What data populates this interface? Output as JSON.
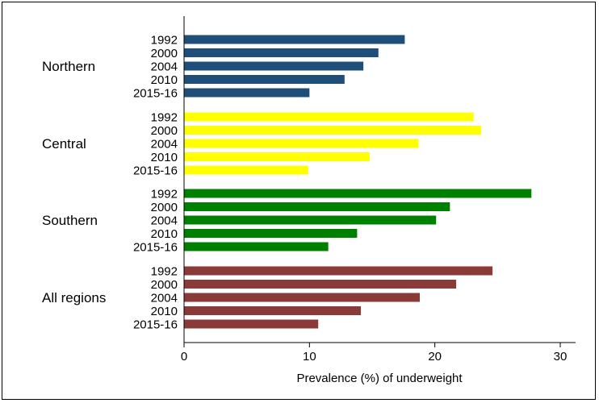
{
  "chart_data": {
    "type": "bar",
    "orientation": "horizontal",
    "xlabel": "Prevalence (%) of underweight",
    "xlim": [
      0,
      31
    ],
    "xticks": [
      0,
      10,
      20,
      30
    ],
    "grid": false,
    "groups": [
      {
        "name": "Northern",
        "color": "#1f4e79",
        "categories": [
          "1992",
          "2000",
          "2004",
          "2010",
          "2015-16"
        ],
        "values": [
          17.6,
          15.5,
          14.3,
          12.8,
          10.0
        ]
      },
      {
        "name": "Central",
        "color": "#ffff00",
        "categories": [
          "1992",
          "2000",
          "2004",
          "2010",
          "2015-16"
        ],
        "values": [
          23.1,
          23.7,
          18.7,
          14.8,
          9.9
        ]
      },
      {
        "name": "Southern",
        "color": "#008000",
        "categories": [
          "1992",
          "2000",
          "2004",
          "2010",
          "2015-16"
        ],
        "values": [
          27.7,
          21.2,
          20.1,
          13.8,
          11.5
        ]
      },
      {
        "name": "All regions",
        "color": "#8b3a3a",
        "categories": [
          "1992",
          "2000",
          "2004",
          "2010",
          "2015-16"
        ],
        "values": [
          24.6,
          21.7,
          18.8,
          14.1,
          10.7
        ]
      }
    ]
  }
}
